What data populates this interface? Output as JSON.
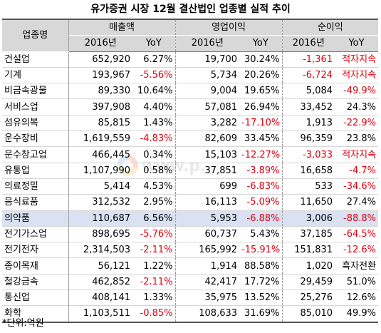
{
  "title": "유가증권 시장 12월 결산법인 업종별 실적 추이",
  "headers": {
    "industry": "업종명",
    "groups": [
      "매출액",
      "영업이익",
      "순이익"
    ],
    "year": "2016년",
    "yoy": "YoY"
  },
  "rows": [
    {
      "name": "건설업",
      "sales": "652,920",
      "sales_yoy": "6.27%",
      "op": "19,700",
      "op_yoy": "30.24%",
      "net": "-1,361",
      "net_yoy": "적자지속"
    },
    {
      "name": "기계",
      "sales": "193,967",
      "sales_yoy": "-5.56%",
      "op": "5,734",
      "op_yoy": "20.26%",
      "net": "-6,724",
      "net_yoy": "적자지속"
    },
    {
      "name": "비금속광물",
      "sales": "89,330",
      "sales_yoy": "10.64%",
      "op": "9,004",
      "op_yoy": "19.65%",
      "net": "5,084",
      "net_yoy": "-49.9%"
    },
    {
      "name": "서비스업",
      "sales": "397,908",
      "sales_yoy": "4.40%",
      "op": "57,081",
      "op_yoy": "26.94%",
      "net": "33,452",
      "net_yoy": "24.3%"
    },
    {
      "name": "섬유의복",
      "sales": "85,815",
      "sales_yoy": "1.43%",
      "op": "3,282",
      "op_yoy": "-17.10%",
      "net": "1,913",
      "net_yoy": "-22.9%"
    },
    {
      "name": "운수장비",
      "sales": "1,619,559",
      "sales_yoy": "-4.83%",
      "op": "82,609",
      "op_yoy": "33.45%",
      "net": "96,359",
      "net_yoy": "23.8%"
    },
    {
      "name": "운수창고업",
      "sales": "466,445",
      "sales_yoy": "0.34%",
      "op": "15,103",
      "op_yoy": "-12.27%",
      "net": "-3,033",
      "net_yoy": "적자지속"
    },
    {
      "name": "유통업",
      "sales": "1,107,990",
      "sales_yoy": "0.58%",
      "op": "37,851",
      "op_yoy": "-3.89%",
      "net": "16,658",
      "net_yoy": "-4.7%"
    },
    {
      "name": "의료정밀",
      "sales": "5,414",
      "sales_yoy": "4.53%",
      "op": "699",
      "op_yoy": "-6.83%",
      "net": "533",
      "net_yoy": "-34.6%"
    },
    {
      "name": "음식료품",
      "sales": "312,532",
      "sales_yoy": "2.95%",
      "op": "16,113",
      "op_yoy": "-5.09%",
      "net": "11,650",
      "net_yoy": "27.4%"
    },
    {
      "name": "의약품",
      "sales": "110,687",
      "sales_yoy": "6.56%",
      "op": "5,953",
      "op_yoy": "-6.88%",
      "net": "3,006",
      "net_yoy": "-88.8%",
      "highlight": true
    },
    {
      "name": "전기가스업",
      "sales": "898,695",
      "sales_yoy": "-5.76%",
      "op": "60,737",
      "op_yoy": "5.43%",
      "net": "37,185",
      "net_yoy": "-64.5%"
    },
    {
      "name": "전기전자",
      "sales": "2,314,503",
      "sales_yoy": "-2.11%",
      "op": "165,992",
      "op_yoy": "-15.91%",
      "net": "151,831",
      "net_yoy": "-12.6%"
    },
    {
      "name": "종이목재",
      "sales": "56,121",
      "sales_yoy": "1.22%",
      "op": "1,914",
      "op_yoy": "88.58%",
      "net": "1,020",
      "net_yoy": "흑자전환"
    },
    {
      "name": "철강금속",
      "sales": "462,852",
      "sales_yoy": "-2.11%",
      "op": "42,417",
      "op_yoy": "17.72%",
      "net": "29,459",
      "net_yoy": "51.0%"
    },
    {
      "name": "통신업",
      "sales": "408,141",
      "sales_yoy": "1.33%",
      "op": "35,975",
      "op_yoy": "13.52%",
      "net": "25,276",
      "net_yoy": "12.6%"
    },
    {
      "name": "화학",
      "sales": "1,103,511",
      "sales_yoy": "-0.85%",
      "op": "108,633",
      "op_yoy": "31.69%",
      "net": "85,010",
      "net_yoy": "49.9%"
    }
  ],
  "unit_note": "*단위:억원",
  "watermark": "www.p...",
  "colors": {
    "negative": "#e0000f",
    "highlight": "#d9e1f2",
    "header": "#d8d8d8"
  }
}
